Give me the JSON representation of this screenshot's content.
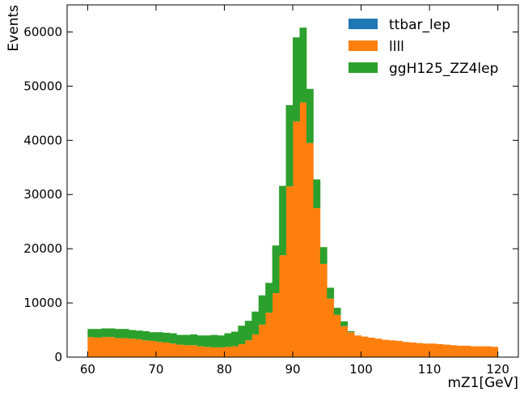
{
  "chart_data": {
    "type": "bar",
    "stacked": true,
    "title": "",
    "xlabel": "mZ1[GeV]",
    "ylabel": "Events",
    "xlim": [
      57,
      123
    ],
    "ylim": [
      0,
      65000
    ],
    "xticks": [
      60,
      70,
      80,
      90,
      100,
      110,
      120
    ],
    "yticks": [
      0,
      10000,
      20000,
      30000,
      40000,
      50000,
      60000
    ],
    "ytick_labels": [
      "0",
      "10000",
      "20000",
      "30000",
      "40000",
      "50000",
      "60000"
    ],
    "grid": false,
    "legend_position": "top-right",
    "bin_edges": [
      60,
      61,
      62,
      63,
      64,
      65,
      66,
      67,
      68,
      69,
      70,
      71,
      72,
      73,
      74,
      75,
      76,
      77,
      78,
      79,
      80,
      81,
      82,
      83,
      84,
      85,
      86,
      87,
      88,
      89,
      90,
      91,
      92,
      93,
      94,
      95,
      96,
      97,
      98,
      99,
      100,
      101,
      102,
      103,
      104,
      105,
      106,
      107,
      108,
      109,
      110,
      111,
      112,
      113,
      114,
      115,
      116,
      117,
      118,
      119,
      120
    ],
    "series": [
      {
        "name": "ttbar_lep",
        "color": "#1f77b4",
        "values": [
          0,
          0,
          0,
          0,
          0,
          0,
          0,
          0,
          0,
          0,
          0,
          0,
          0,
          0,
          0,
          0,
          0,
          0,
          0,
          0,
          0,
          0,
          0,
          0,
          0,
          0,
          0,
          0,
          0,
          0,
          0,
          0,
          0,
          0,
          0,
          0,
          0,
          0,
          0,
          0,
          0,
          0,
          0,
          0,
          0,
          0,
          0,
          0,
          0,
          0,
          0,
          0,
          0,
          0,
          0,
          0,
          0,
          0,
          0,
          0
        ]
      },
      {
        "name": "llll",
        "color": "#ff7f0e",
        "values": [
          3700,
          3600,
          3700,
          3700,
          3500,
          3500,
          3400,
          3300,
          3100,
          3000,
          2800,
          2700,
          2500,
          2300,
          2200,
          2200,
          2000,
          1900,
          1800,
          1800,
          1900,
          2000,
          2400,
          3100,
          4200,
          6000,
          8200,
          11800,
          18800,
          31500,
          43500,
          47000,
          39500,
          27500,
          17200,
          10800,
          7800,
          5700,
          4600,
          4000,
          3800,
          3600,
          3400,
          3200,
          3100,
          3000,
          2800,
          2700,
          2600,
          2500,
          2500,
          2400,
          2300,
          2200,
          2100,
          2100,
          2000,
          2000,
          2000,
          1900
        ]
      },
      {
        "name": "ggH125_ZZ4lep",
        "color": "#2ca02c",
        "values": [
          1500,
          1600,
          1600,
          1600,
          1700,
          1700,
          1600,
          1600,
          1700,
          1600,
          1800,
          1800,
          1900,
          1800,
          1900,
          2000,
          2000,
          2100,
          2300,
          2200,
          2500,
          2700,
          3400,
          3600,
          4200,
          5400,
          5500,
          8800,
          12800,
          15000,
          15500,
          13800,
          10000,
          5300,
          3100,
          2000,
          1300,
          900,
          200,
          0,
          0,
          0,
          0,
          0,
          0,
          0,
          0,
          0,
          0,
          0,
          0,
          0,
          0,
          0,
          0,
          0,
          0,
          0,
          0,
          0
        ]
      }
    ]
  }
}
